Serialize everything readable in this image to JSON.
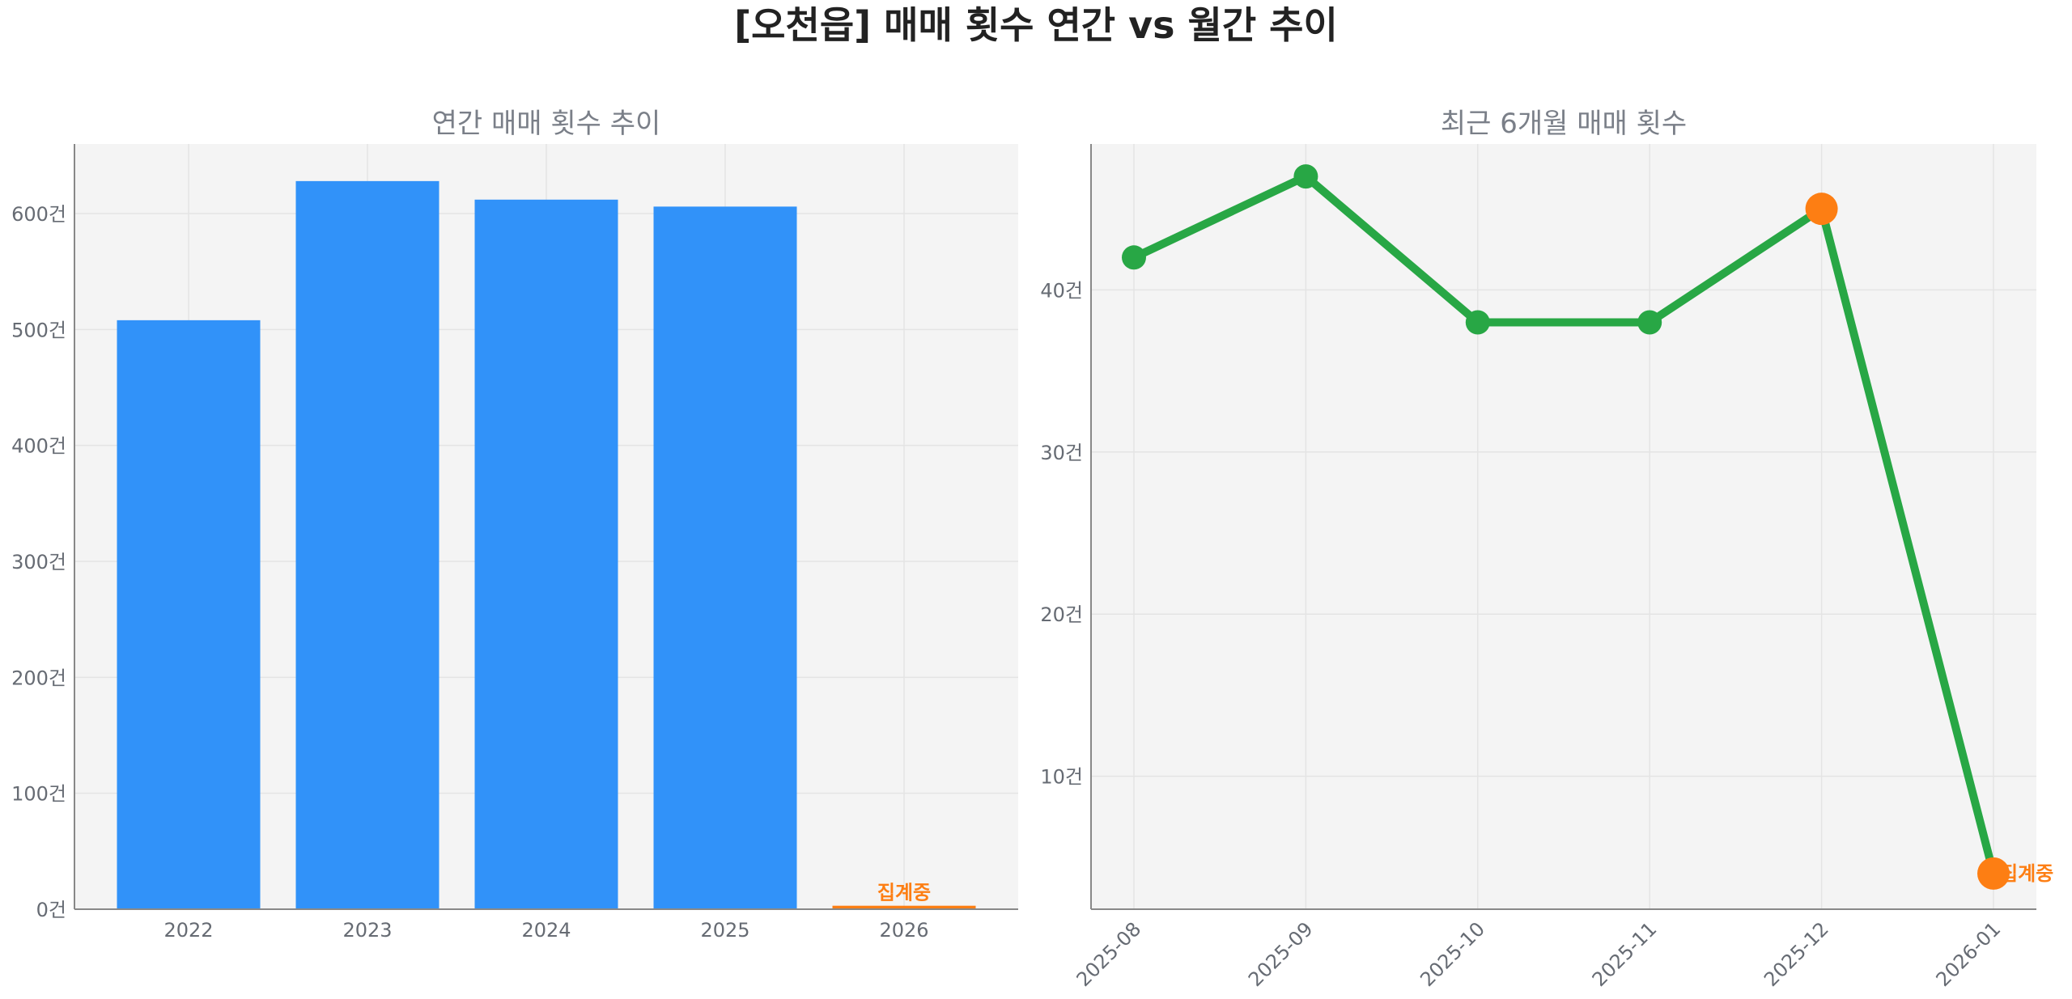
{
  "title": "[오천읍] 매매 횟수 연간 vs 월간 추이",
  "colors": {
    "bar": "#3192f9",
    "pending": "#fd7e13",
    "line": "#28a745",
    "plot_bg": "#f4f4f4",
    "grid": "#e4e4e4",
    "spine": "#888888"
  },
  "chart_data": [
    {
      "type": "bar",
      "title": "연간 매매 횟수 추이",
      "categories": [
        "2022",
        "2023",
        "2024",
        "2025",
        "2026"
      ],
      "values": [
        508,
        628,
        612,
        606,
        3
      ],
      "highlight_index": 4,
      "highlight_label": "집계중",
      "ylim": [
        0,
        660
      ],
      "yticks": [
        0,
        100,
        200,
        300,
        400,
        500,
        600
      ],
      "ytick_labels": [
        "0건",
        "100건",
        "200건",
        "300건",
        "400건",
        "500건",
        "600건"
      ],
      "grid": true
    },
    {
      "type": "line",
      "title": "최근 6개월 매매 횟수",
      "categories": [
        "2025-08",
        "2025-09",
        "2025-10",
        "2025-11",
        "2025-12",
        "2026-01"
      ],
      "values": [
        42,
        47,
        38,
        38,
        45,
        4
      ],
      "highlight_indices": [
        4,
        5
      ],
      "highlight_label": "집계중",
      "ylim": [
        1.8,
        49
      ],
      "yticks": [
        10,
        20,
        30,
        40
      ],
      "ytick_labels": [
        "10건",
        "20건",
        "30건",
        "40건"
      ],
      "grid": true
    }
  ]
}
